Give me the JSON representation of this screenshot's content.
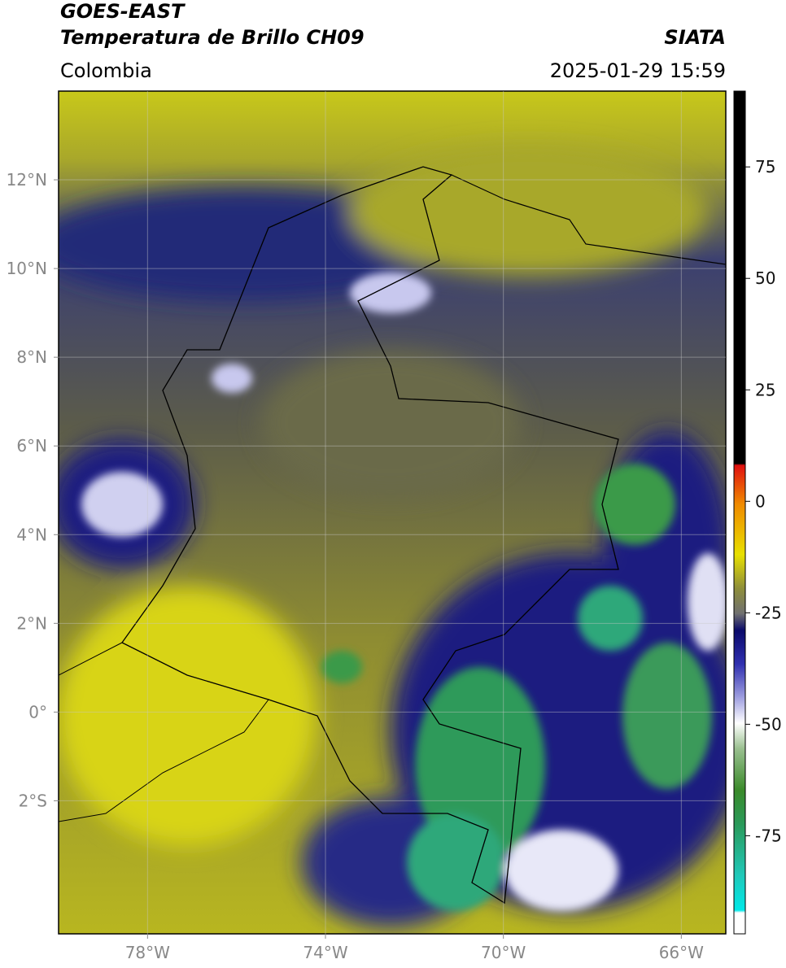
{
  "header": {
    "title": "GOES-EAST",
    "subtitle": "Temperatura de Brillo CH09",
    "source": "SIATA",
    "region": "Colombia",
    "datetime": "2025-01-29 15:59"
  },
  "map": {
    "xlim": [
      -80,
      -65
    ],
    "ylim": [
      -5,
      14
    ],
    "grid": true,
    "xticks": [
      {
        "value": -78,
        "label": "78°W"
      },
      {
        "value": -74,
        "label": "74°W"
      },
      {
        "value": -70,
        "label": "70°W"
      },
      {
        "value": -66,
        "label": "66°W"
      }
    ],
    "yticks": [
      {
        "value": 12,
        "label": "12°N"
      },
      {
        "value": 10,
        "label": "10°N"
      },
      {
        "value": 8,
        "label": "8°N"
      },
      {
        "value": 6,
        "label": "6°N"
      },
      {
        "value": 4,
        "label": "4°N"
      },
      {
        "value": 2,
        "label": "2°N"
      },
      {
        "value": 0,
        "label": "0°"
      },
      {
        "value": -2,
        "label": "2°S"
      }
    ]
  },
  "colorbar": {
    "lim": [
      -97,
      92
    ],
    "ticks": [
      75,
      50,
      25,
      0,
      -25,
      -50,
      -75
    ]
  }
}
